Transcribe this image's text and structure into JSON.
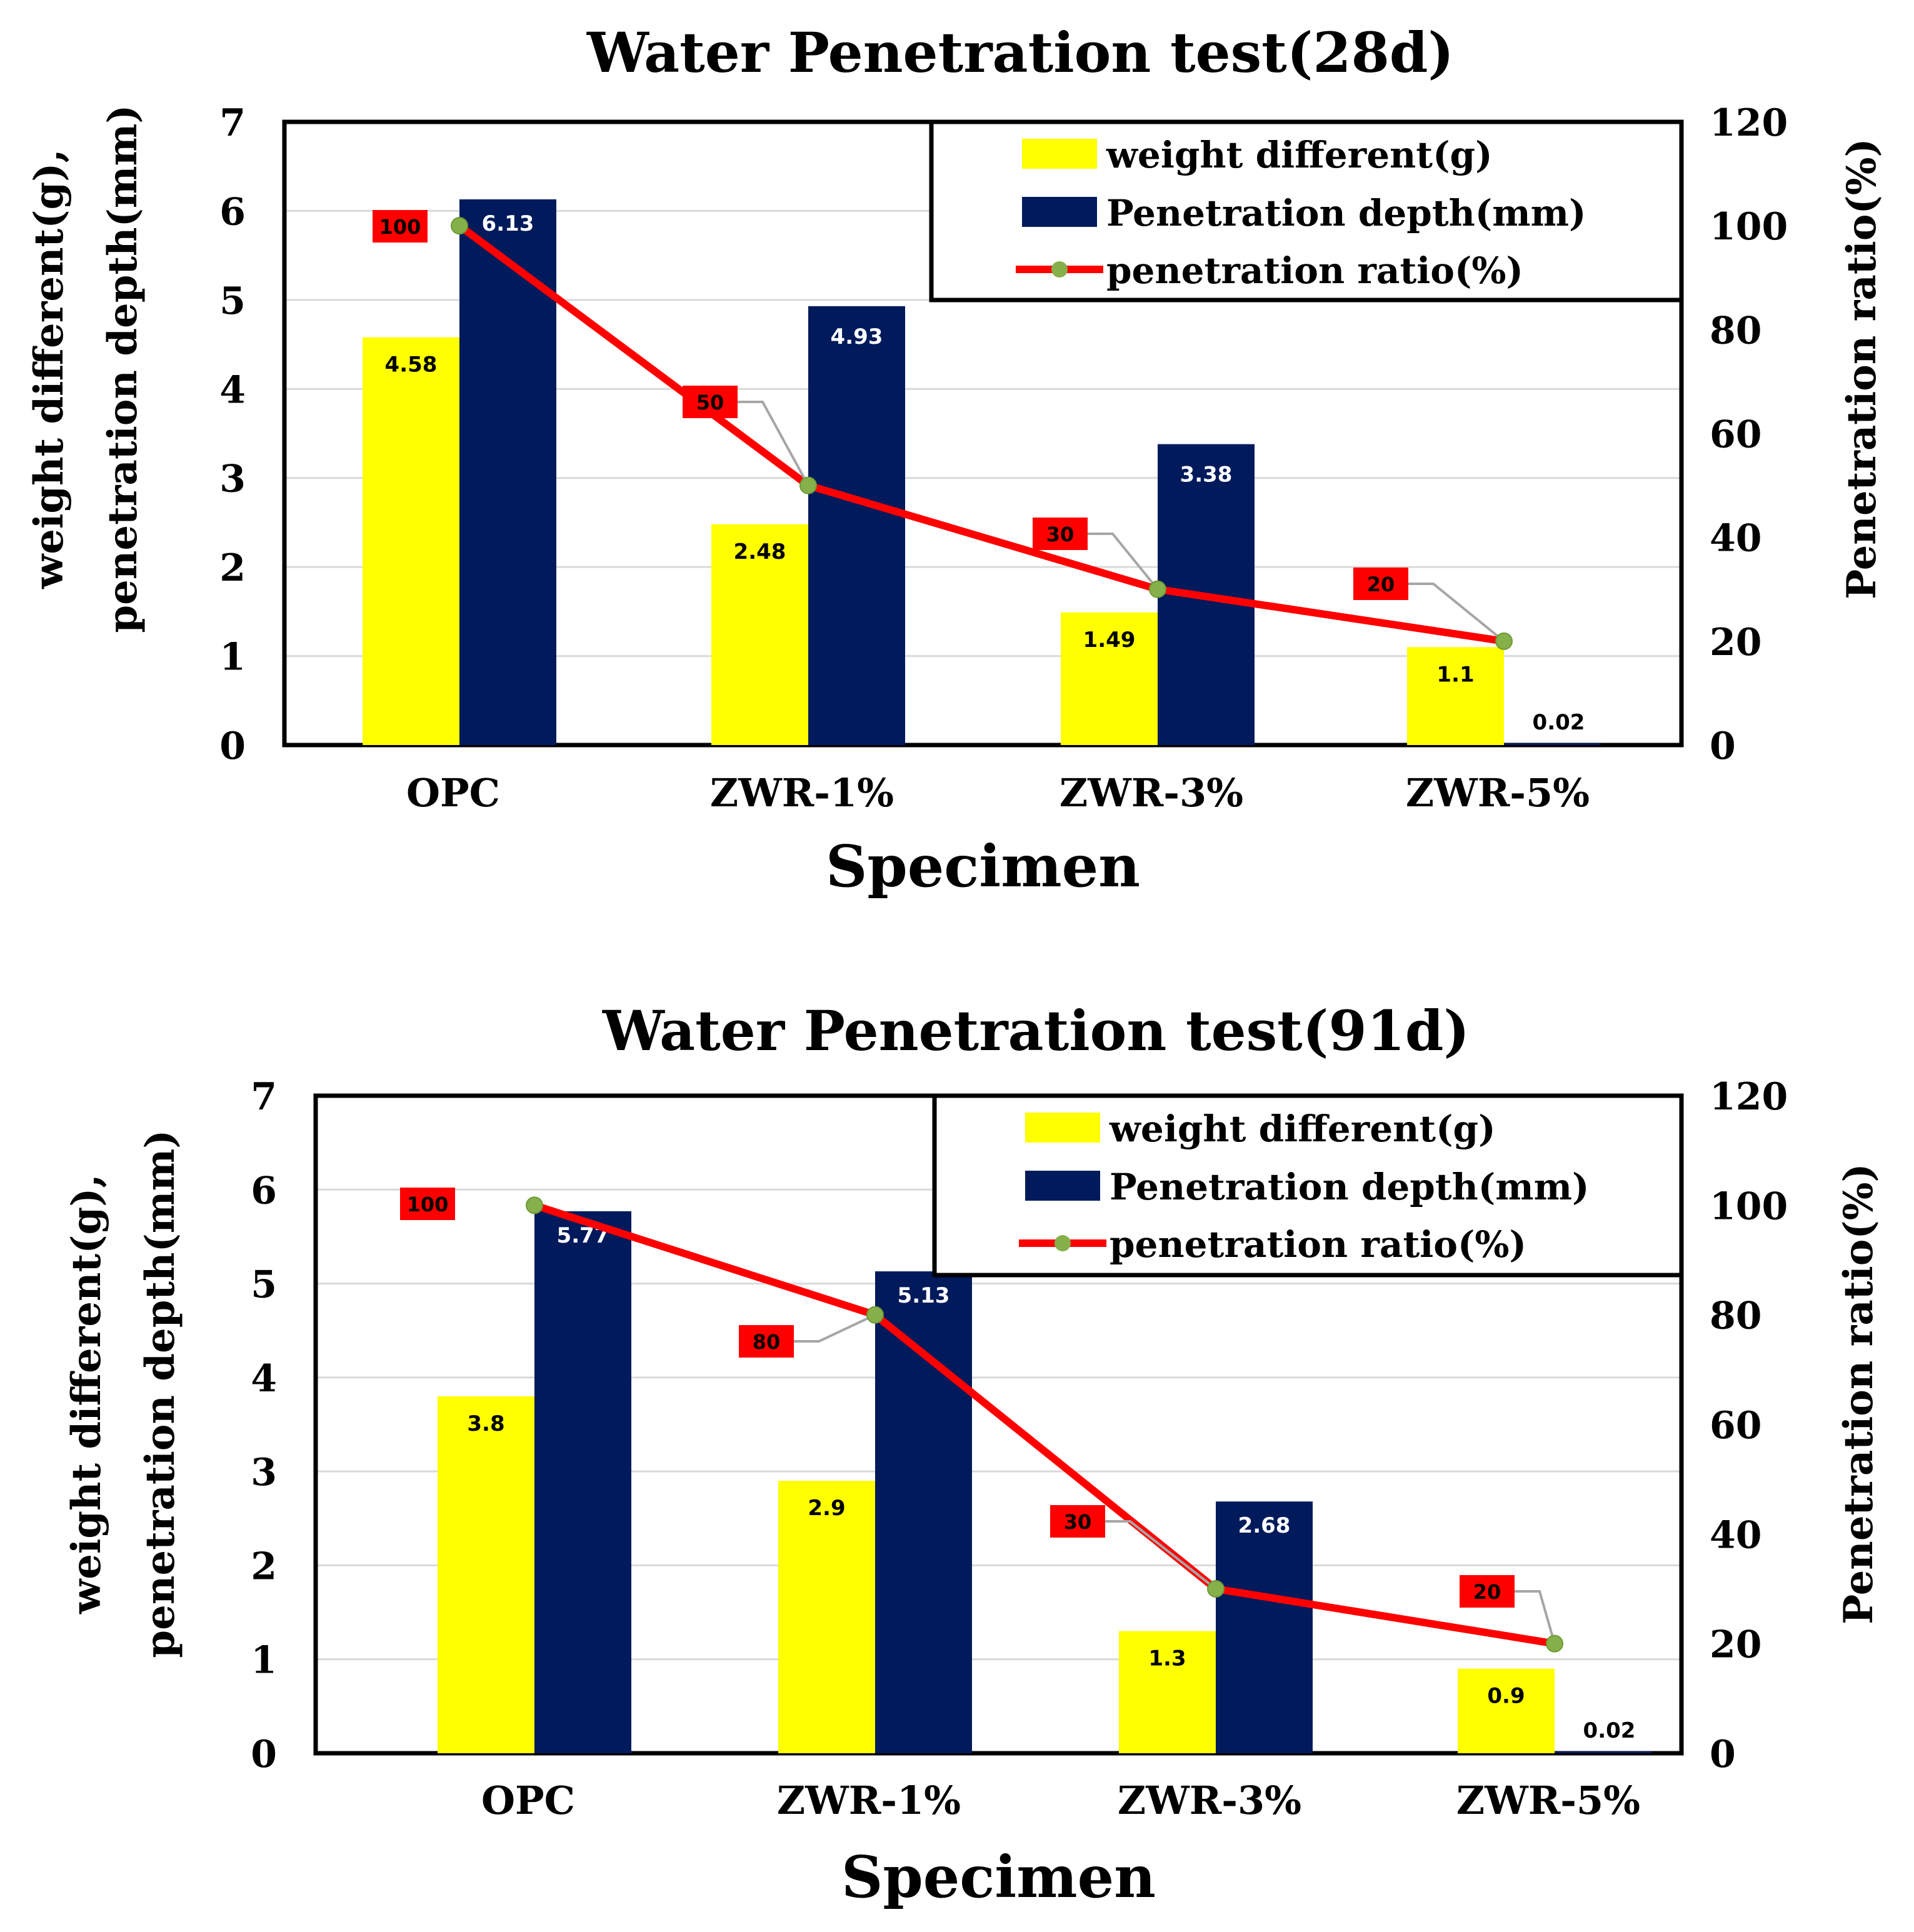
{
  "colors": {
    "weight": "#ffff00",
    "depth": "#001a5c",
    "ratio_line": "#ff0000",
    "ratio_marker": "#86b04a",
    "ratio_label_bg": "#ff0000",
    "grid": "#d9d9d9",
    "leader": "#a6a6a6"
  },
  "chart_data": [
    {
      "type": "bar",
      "title": "Water Penetration test(28d)",
      "xlabel": "Specimen",
      "ylabel_line1": "weight different(g),",
      "ylabel_line2": "penetration depth(mm)",
      "y2label": "Penetration ratio(%)",
      "categories": [
        "OPC",
        "ZWR-1%",
        "ZWR-3%",
        "ZWR-5%"
      ],
      "ylim": [
        0,
        7
      ],
      "yticks": [
        "0",
        "1",
        "2",
        "3",
        "4",
        "5",
        "6",
        "7"
      ],
      "y2lim": [
        0,
        120
      ],
      "y2ticks": [
        "0",
        "20",
        "40",
        "60",
        "80",
        "100",
        "120"
      ],
      "legend_position": "top-right",
      "series": [
        {
          "name": "weight different(g)",
          "kind": "bar",
          "axis": "left",
          "values": [
            4.58,
            2.48,
            1.49,
            1.1
          ],
          "labels": [
            "4.58",
            "2.48",
            "1.49",
            "1.1"
          ]
        },
        {
          "name": "Penetration depth(mm)",
          "kind": "bar",
          "axis": "left",
          "values": [
            6.13,
            4.93,
            3.38,
            0.02
          ],
          "labels": [
            "6.13",
            "4.93",
            "3.38",
            "0.02"
          ]
        },
        {
          "name": "penetration ratio(%)",
          "kind": "line",
          "axis": "right",
          "values": [
            100,
            50,
            30,
            20
          ],
          "labels": [
            "100",
            "50",
            "30",
            "20"
          ]
        }
      ]
    },
    {
      "type": "bar",
      "title": "Water Penetration test(91d)",
      "xlabel": "Specimen",
      "ylabel_line1": "weight different(g),",
      "ylabel_line2": "penetration depth(mm)",
      "y2label": "Penetration ratio(%)",
      "categories": [
        "OPC",
        "ZWR-1%",
        "ZWR-3%",
        "ZWR-5%"
      ],
      "ylim": [
        0,
        7
      ],
      "yticks": [
        "0",
        "1",
        "2",
        "3",
        "4",
        "5",
        "6",
        "7"
      ],
      "y2lim": [
        0,
        120
      ],
      "y2ticks": [
        "0",
        "20",
        "40",
        "60",
        "80",
        "100",
        "120"
      ],
      "legend_position": "top-right",
      "series": [
        {
          "name": "weight different(g)",
          "kind": "bar",
          "axis": "left",
          "values": [
            3.8,
            2.9,
            1.3,
            0.9
          ],
          "labels": [
            "3.8",
            "2.9",
            "1.3",
            "0.9"
          ]
        },
        {
          "name": "Penetration depth(mm)",
          "kind": "bar",
          "axis": "left",
          "values": [
            5.77,
            5.13,
            2.68,
            0.02
          ],
          "labels": [
            "5.77",
            "5.13",
            "2.68",
            "0.02"
          ]
        },
        {
          "name": "penetration ratio(%)",
          "kind": "line",
          "axis": "right",
          "values": [
            100,
            80,
            30,
            20
          ],
          "labels": [
            "100",
            "80",
            "30",
            "20"
          ]
        }
      ]
    }
  ]
}
